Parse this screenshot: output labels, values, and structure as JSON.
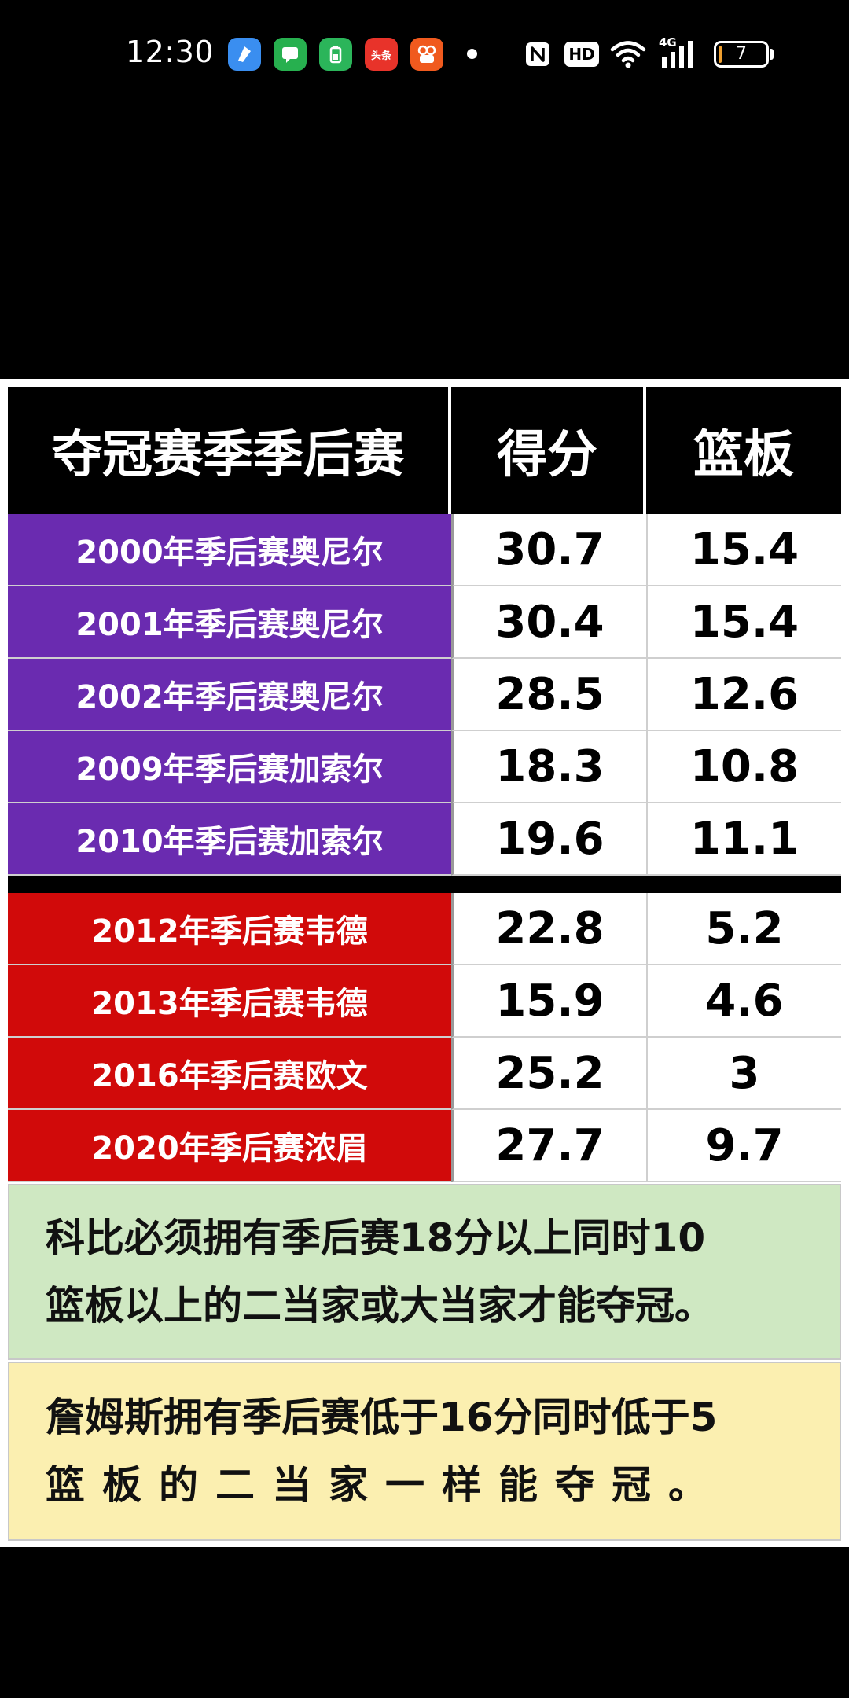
{
  "status_bar": {
    "time": "12:30",
    "notification_icons": [
      {
        "name": "browser-app-icon",
        "color": "#3a8ef0",
        "text": ""
      },
      {
        "name": "chat-app-icon",
        "color": "#27b04f",
        "text": ""
      },
      {
        "name": "battery-app-icon",
        "color": "#2bb55a",
        "text": ""
      },
      {
        "name": "toutiao-app-icon",
        "color": "#e8332a",
        "text": "头条"
      },
      {
        "name": "kuaishou-app-icon",
        "color": "#f05a1e",
        "text": ""
      }
    ],
    "network_label": "4G",
    "hd_label": "HD",
    "battery_level": "7",
    "battery_fraction": 0.07
  },
  "table": {
    "headers": [
      "夺冠赛季季后赛",
      "得分",
      "篮板"
    ],
    "groups": [
      {
        "color": "#6a2bb0",
        "rows": [
          {
            "label": "2000年季后赛奥尼尔",
            "points": "30.7",
            "rebounds": "15.4"
          },
          {
            "label": "2001年季后赛奥尼尔",
            "points": "30.4",
            "rebounds": "15.4"
          },
          {
            "label": "2002年季后赛奥尼尔",
            "points": "28.5",
            "rebounds": "12.6"
          },
          {
            "label": "2009年季后赛加索尔",
            "points": "18.3",
            "rebounds": "10.8"
          },
          {
            "label": "2010年季后赛加索尔",
            "points": "19.6",
            "rebounds": "11.1"
          }
        ]
      },
      {
        "color": "#d10a0a",
        "rows": [
          {
            "label": "2012年季后赛韦德",
            "points": "22.8",
            "rebounds": "5.2"
          },
          {
            "label": "2013年季后赛韦德",
            "points": "15.9",
            "rebounds": "4.6"
          },
          {
            "label": "2016年季后赛欧文",
            "points": "25.2",
            "rebounds": "3"
          },
          {
            "label": "2020年季后赛浓眉",
            "points": "27.7",
            "rebounds": "9.7"
          }
        ]
      }
    ]
  },
  "notes": {
    "kobe_line1": "科比必须拥有季后赛18分以上同时10",
    "kobe_line2": "篮板以上的二当家或大当家才能夺冠。",
    "james_line1": "詹姆斯拥有季后赛低于16分同时低于5",
    "james_line2": "篮板的二当家一样能夺冠。",
    "kobe_bg": "#cfe8c2",
    "james_bg": "#fbefb0"
  }
}
